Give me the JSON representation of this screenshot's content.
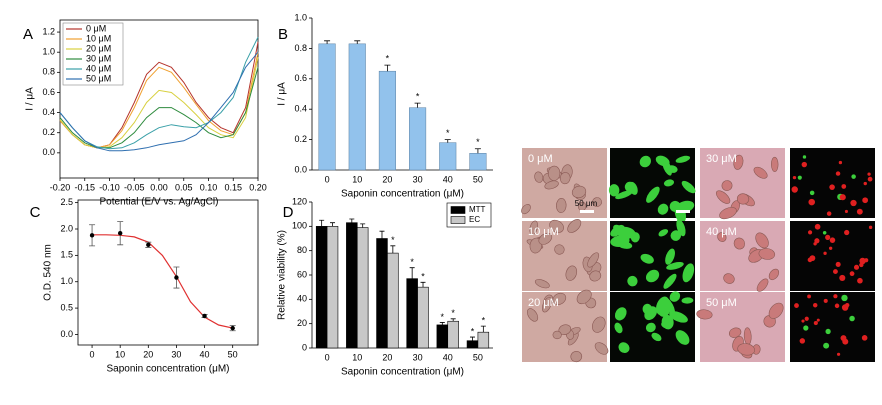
{
  "chart_data": [
    {
      "type": "line",
      "label": "A",
      "xlabel": "Potential (E/V vs. Ag/AgCl)",
      "ylabel": "I / μA",
      "x": [
        -0.2,
        -0.175,
        -0.15,
        -0.125,
        -0.1,
        -0.075,
        -0.05,
        -0.025,
        0,
        0.025,
        0.05,
        0.075,
        0.1,
        0.125,
        0.15,
        0.175,
        0.2
      ],
      "series": [
        {
          "name": "0 μM",
          "color": "#b5342c",
          "values": [
            0.32,
            0.18,
            0.08,
            0.05,
            0.08,
            0.25,
            0.5,
            0.78,
            0.9,
            0.85,
            0.7,
            0.5,
            0.35,
            0.25,
            0.2,
            0.45,
            1.1
          ]
        },
        {
          "name": "10 μM",
          "color": "#f0a030",
          "values": [
            0.32,
            0.18,
            0.08,
            0.05,
            0.08,
            0.22,
            0.45,
            0.72,
            0.85,
            0.8,
            0.65,
            0.48,
            0.32,
            0.22,
            0.18,
            0.4,
            1.0
          ]
        },
        {
          "name": "20 μM",
          "color": "#d8d040",
          "values": [
            0.33,
            0.18,
            0.08,
            0.05,
            0.06,
            0.15,
            0.3,
            0.5,
            0.62,
            0.6,
            0.5,
            0.38,
            0.25,
            0.18,
            0.15,
            0.35,
            0.95
          ]
        },
        {
          "name": "30 μM",
          "color": "#2e8b3e",
          "values": [
            0.35,
            0.2,
            0.1,
            0.05,
            0.05,
            0.1,
            0.2,
            0.35,
            0.45,
            0.45,
            0.38,
            0.3,
            0.2,
            0.15,
            0.18,
            0.4,
            0.85
          ]
        },
        {
          "name": "40 μM",
          "color": "#3aa0a8",
          "values": [
            0.4,
            0.25,
            0.12,
            0.06,
            0.04,
            0.05,
            0.1,
            0.18,
            0.25,
            0.28,
            0.26,
            0.25,
            0.3,
            0.4,
            0.55,
            0.9,
            1.15
          ]
        },
        {
          "name": "50 μM",
          "color": "#2f6fb0",
          "values": [
            0.4,
            0.25,
            0.12,
            0.05,
            0.02,
            0.02,
            0.03,
            0.05,
            0.08,
            0.1,
            0.12,
            0.18,
            0.3,
            0.45,
            0.6,
            0.85,
            1.0
          ]
        }
      ],
      "xlim": [
        -0.2,
        0.2
      ],
      "xticks": [
        {
          "value": -0.2,
          "label": "-0.20"
        },
        {
          "value": -0.15,
          "label": "-0.15"
        },
        {
          "value": -0.1,
          "label": "-0.10"
        },
        {
          "value": -0.05,
          "label": "-0.05"
        },
        {
          "value": 0,
          "label": "0.00"
        },
        {
          "value": 0.05,
          "label": "0.05"
        },
        {
          "value": 0.1,
          "label": "0.10"
        },
        {
          "value": 0.15,
          "label": "0.15"
        },
        {
          "value": 0.2,
          "label": "0.20"
        }
      ],
      "ylim": [
        -0.25,
        1.32
      ],
      "yticks": [
        {
          "value": 0,
          "label": "0.0"
        },
        {
          "value": 0.2,
          "label": "0.2"
        },
        {
          "value": 0.4,
          "label": "0.4"
        },
        {
          "value": 0.6,
          "label": "0.6"
        },
        {
          "value": 0.8,
          "label": "0.8"
        },
        {
          "value": 1,
          "label": "1.0"
        },
        {
          "value": 1.2,
          "label": "1.2"
        }
      ],
      "legend": "upper left"
    },
    {
      "type": "bar",
      "label": "B",
      "xlabel": "Saponin concentration (μM)",
      "ylabel": "I / μA",
      "color": "#92c2ec",
      "categories": [
        "0",
        "10",
        "20",
        "30",
        "40",
        "50"
      ],
      "values": [
        0.83,
        0.83,
        0.65,
        0.41,
        0.18,
        0.11
      ],
      "errors": [
        0.02,
        0.02,
        0.04,
        0.03,
        0.02,
        0.03
      ],
      "markers": [
        null,
        null,
        "*",
        "*",
        "*",
        "*"
      ],
      "ylim": [
        0,
        1.0
      ],
      "yticks": [
        {
          "value": 0,
          "label": "0.0"
        },
        {
          "value": 0.2,
          "label": "0.2"
        },
        {
          "value": 0.4,
          "label": "0.4"
        },
        {
          "value": 0.6,
          "label": "0.6"
        },
        {
          "value": 0.8,
          "label": "0.8"
        },
        {
          "value": 1,
          "label": "1.0"
        }
      ]
    },
    {
      "type": "scatter",
      "label": "C",
      "xlabel": "Saponin concentration (μM)",
      "ylabel": "O.D. 540 nm",
      "x": [
        0,
        10,
        20,
        30,
        40,
        50
      ],
      "values": [
        1.88,
        1.92,
        1.7,
        1.08,
        0.35,
        0.12
      ],
      "errors": [
        0.2,
        0.22,
        0.05,
        0.2,
        0.03,
        0.05
      ],
      "fit": {
        "color": "#e03030",
        "x": [
          0,
          5,
          10,
          15,
          20,
          25,
          30,
          35,
          40,
          45,
          50
        ],
        "values": [
          1.89,
          1.89,
          1.88,
          1.85,
          1.75,
          1.5,
          1.1,
          0.62,
          0.33,
          0.18,
          0.12
        ]
      },
      "xlim": [
        -5,
        59
      ],
      "xticks": [
        0,
        10,
        20,
        30,
        40,
        50
      ],
      "ylim": [
        -0.2,
        2.55
      ],
      "yticks": [
        {
          "value": 0,
          "label": "0.0"
        },
        {
          "value": 0.5,
          "label": "0.5"
        },
        {
          "value": 1,
          "label": "1.0"
        },
        {
          "value": 1.5,
          "label": "1.5"
        },
        {
          "value": 2,
          "label": "2.0"
        },
        {
          "value": 2.5,
          "label": "2.5"
        }
      ]
    },
    {
      "type": "grouped-bar",
      "label": "D",
      "xlabel": "Saponin concentration (μM)",
      "ylabel": "Relative viability (%)",
      "categories": [
        "0",
        "10",
        "20",
        "30",
        "40",
        "50"
      ],
      "series": [
        {
          "name": "MTT",
          "color": "#000000",
          "values": [
            100,
            103,
            90,
            57,
            19,
            6
          ],
          "errors": [
            5,
            3,
            6,
            9,
            2,
            3
          ],
          "markers": [
            null,
            null,
            null,
            "*",
            "*",
            "*"
          ]
        },
        {
          "name": "EC",
          "color": "#c8c8c8",
          "values": [
            100,
            99,
            78,
            50,
            22,
            13
          ],
          "errors": [
            3,
            3,
            6,
            4,
            2,
            5
          ],
          "markers": [
            null,
            null,
            "*",
            "*",
            "*",
            "*"
          ]
        }
      ],
      "ylim": [
        0,
        120
      ],
      "yticks": [
        0,
        20,
        40,
        60,
        80,
        100,
        120
      ],
      "legend": "upper right"
    }
  ],
  "micrographs": {
    "labels": [
      "0 μM",
      "10 μM",
      "20 μM",
      "30 μM",
      "40 μM",
      "50 μM"
    ],
    "scale_bar": "50 μm"
  }
}
